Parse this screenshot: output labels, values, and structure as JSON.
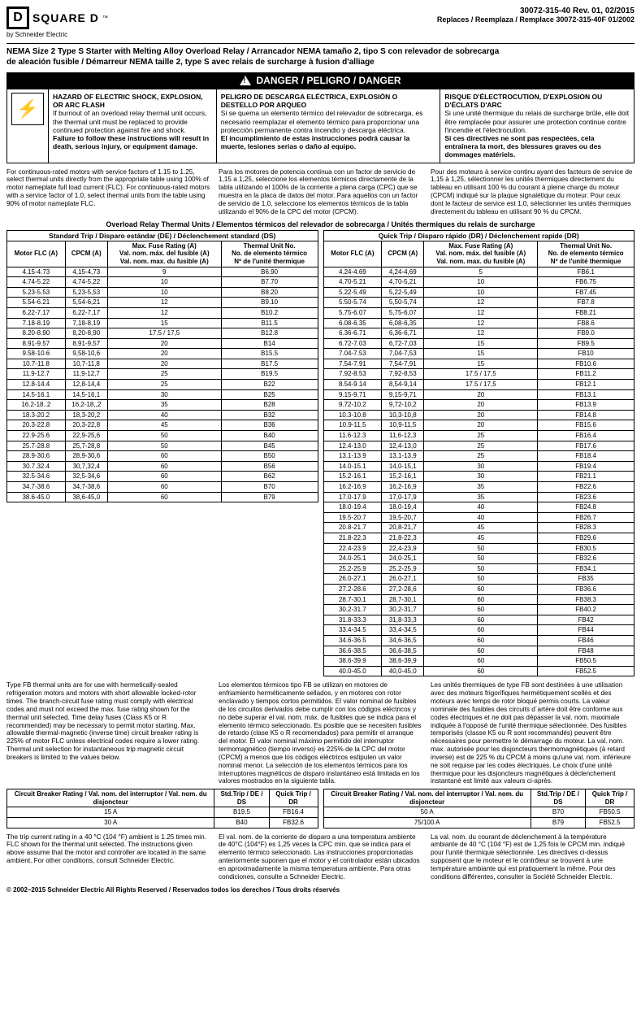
{
  "header": {
    "brand": "SQUARE D",
    "by": "by Schneider Electric",
    "docnum": "30072-315-40 Rev. 01, 02/2015",
    "replaces": "Replaces / Reemplaza / Remplace 30072-315-40F 01/2002"
  },
  "title1": "NEMA Size 2 Type S Starter with Melting Alloy Overload Relay / Arrancador NEMA tamaño 2, tipo S con relevador de sobrecarga",
  "title2": "de aleación fusible / Démarreur NEMA taille 2, type S  avec relais de surcharge à fusion d'alliage",
  "danger_label": "DANGER / PELIGRO / DANGER",
  "hazard": {
    "en_head": "HAZARD OF ELECTRIC SHOCK, EXPLOSION, OR ARC FLASH",
    "en_body": "If burnout of an overload relay thermal unit occurs, the thermal unit must be replaced to provide continued protection against fire and shock.",
    "en_bold": "Failure to follow these instructions will result in death, serious injury, or equipment damage.",
    "es_head": "PELIGRO DE DESCARGA ELÉCTRICA, EXPLOSIÓN O DESTELLO POR ARQUEO",
    "es_body": "Si se quema un elemento térmico del relevador de sobrecarga, es necesario reemplazar el elemento térmico para proporcionar una protección permanente contra incendio y descarga eléctrica.",
    "es_bold": "El incumplimiento de estas instrucciones podrá causar la muerte, lesiones serias o daño al equipo.",
    "fr_head": "RISQUE D'ÉLECTROCUTION, D'EXPLOSION OU D'ÉCLATS D'ARC",
    "fr_body": "Si une unité thermique du relais de surcharge brûle, elle doit être remplacée pour assurer une protection continue contre l'incendie et l'électrocution.",
    "fr_bold": "Si ces directives ne sont pas respectées, cela entraînera la mort, des blessures graves ou des dommages matériels."
  },
  "intro": {
    "en": "For continuous-rated motors with service factors of 1.15 to 1.25, select thermal units directly from the appropriate table using 100% of motor nameplate full load current (FLC). For continuous-rated motors with a service factor of 1.0, select thermal units from the table using 90% of motor nameplate FLC.",
    "es": "Para los motores de potencia continua con un factor de servicio de 1,15 a 1,25, seleccione los elementos térmicos directamente de la tabla utilizando el 100% de la corriente a plena carga (CPC) que se muestra en la placa de datos del motor. Para aquellos con un factor de servicio de 1,0, seleccione los elementos térmicos de la tabla utilizando el 90% de la CPC del motor (CPCM).",
    "fr": "Pour des moteurs à service continu ayant des facteurs de service de 1,15 à 1,25, sélectionner les unités thermiques directement du tableau en utilisant 100 % du courant à pleine charge du moteur (CPCM) indiqué sur la plaque signalétique du moteur. Pour ceux dont le facteur de service est 1,0, sélectionner les unités thermiques directement du tableau en utilisant 90 % du CPCM."
  },
  "overload_head": "Overload Relay Thermal Units / Elementos térmicos del relevador de sobrecarga / Unités thermiques du relais de surcharge",
  "std_caption": "Standard Trip / Disparo estándar (DE) / Déclenchement standard (DS)",
  "quick_caption": "Quick Trip / Disparo rápido (DR) / Déclenchement rapide (DR)",
  "col_heads": {
    "flc": "Motor FLC (A)",
    "cpcm": "CPCM (A)",
    "fuse": "Max. Fuse Rating (A)\nVal. nom. máx. del fusible (A)\nVal. nom. max. du fusible (A)",
    "unit": "Thermal Unit No.\nNo. de elemento térmico\nNº de l'unité thermique"
  },
  "std_rows": [
    [
      "4.15-4.73",
      "4,15-4,73",
      "9",
      "B6.90"
    ],
    [
      "4.74-5.22",
      "4,74-5,22",
      "10",
      "B7.70"
    ],
    [
      "5.23-5.53",
      "5,23-5,53",
      "10",
      "B8.20"
    ],
    [
      "5.54-6.21",
      "5,54-6,21",
      "12",
      "B9.10"
    ],
    [
      "6.22-7.17",
      "6,22-7,17",
      "12",
      "B10.2"
    ],
    [
      "7.18-8.19",
      "7,18-8,19",
      "15",
      "B11.5"
    ],
    [
      "8.20-8.90",
      "8,20-8,90",
      "17.5 / 17,5",
      "B12.8"
    ],
    [
      "8.91-9.57",
      "8,91-9,57",
      "20",
      "B14"
    ],
    [
      "9.58-10.6",
      "9,58-10,6",
      "20",
      "B15.5"
    ],
    [
      "10.7-11.8",
      "10,7-11,8",
      "20",
      "B17.5"
    ],
    [
      "11.9-12.7",
      "11,9-12,7",
      "25",
      "B19.5"
    ],
    [
      "12.8-14.4",
      "12,8-14,4",
      "25",
      "B22"
    ],
    [
      "14.5-16.1",
      "14,5-16,1",
      "30",
      "B25"
    ],
    [
      "16.2-18..2",
      "16,2-18,,2",
      "35",
      "B28"
    ],
    [
      "18.3-20.2",
      "18,3-20,2",
      "40",
      "B32"
    ],
    [
      "20.3-22.8",
      "20,3-22,8",
      "45",
      "B36"
    ],
    [
      "22.9-25.6",
      "22,9-25,6",
      "50",
      "B40"
    ],
    [
      "25.7-28.8",
      "25,7-28,8",
      "50",
      "B45"
    ],
    [
      "28.9-30.6",
      "28,9-30,6",
      "60",
      "B50"
    ],
    [
      "30.7.32.4",
      "30,7,32,4",
      "60",
      "B56"
    ],
    [
      "32.5-34.6",
      "32,5-34,6",
      "60",
      "B62"
    ],
    [
      "34.7-38.6",
      "34,7-38,6",
      "60",
      "B70"
    ],
    [
      "38.6-45.0",
      "38,6-45,0",
      "60",
      "B79"
    ]
  ],
  "quick_rows": [
    [
      "4.24-4.69",
      "4,24-4,69",
      "5",
      "FB6.1"
    ],
    [
      "4.70-5.21",
      "4,70-5,21",
      "10",
      "FB6.75"
    ],
    [
      "5.22-5.49",
      "5,22-5,49",
      "10",
      "FB7.45"
    ],
    [
      "5.50-5.74",
      "5,50-5,74",
      "12",
      "FB7.8"
    ],
    [
      "5.75-6.07",
      "5,75-6,07",
      "12",
      "FB8.21"
    ],
    [
      "6.08-6.35",
      "6,08-6,35",
      "12",
      "FB8.6"
    ],
    [
      "6.36-6.71",
      "6,36-6,71",
      "12",
      "FB9.0"
    ],
    [
      "6.72-7.03",
      "6,72-7,03",
      "15",
      "FB9.5"
    ],
    [
      "7.04-7.53",
      "7,04-7,53",
      "15",
      "FB10"
    ],
    [
      "7.54-7.91",
      "7,54-7,91",
      "15",
      "FB10.6"
    ],
    [
      "7.92-8.53",
      "7,92-8,53",
      "17.5 / 17,5",
      "FB11.2"
    ],
    [
      "8.54-9.14",
      "8,54-9,14",
      "17.5 / 17,5",
      "FB12.1"
    ],
    [
      "9.15-9.71",
      "9,15-9,71",
      "20",
      "FB13.1"
    ],
    [
      "9.72-10.2",
      "9,72-10,2",
      "20",
      "FB13.9"
    ],
    [
      "10.3-10.8",
      "10,3-10,8",
      "20",
      "FB14.8"
    ],
    [
      "10.9-11.5",
      "10,9-11,5",
      "20",
      "FB15.6"
    ],
    [
      "11.6-12.3",
      "11,6-12,3",
      "25",
      "FB16.4"
    ],
    [
      "12.4-13.0",
      "12,4-13,0",
      "25",
      "FB17.6"
    ],
    [
      "13.1-13.9",
      "13,1-13,9",
      "25",
      "FB18.4"
    ],
    [
      "14.0-15.1",
      "14,0-15,1",
      "30",
      "FB19.4"
    ],
    [
      "15.2-16.1",
      "15,2-16,1",
      "30",
      "FB21.1"
    ],
    [
      "16.2-16.9",
      "16,2-16,9",
      "35",
      "FB22.6"
    ],
    [
      "17.0-17.9",
      "17,0-17,9",
      "35",
      "FB23.6"
    ],
    [
      "18.0-19.4",
      "18,0-19,4",
      "40",
      "FB24.8"
    ],
    [
      "19.5-20.7",
      "19,5-20,7",
      "40",
      "FB26.7"
    ],
    [
      "20.8-21.7",
      "20,8-21,7",
      "45",
      "FB28.3"
    ],
    [
      "21.8-22.3",
      "21,8-22,3",
      "45",
      "FB29.6"
    ],
    [
      "22.4-23.9",
      "22,4-23,9",
      "50",
      "FB30.5"
    ],
    [
      "24.0-25.1",
      "24,0-25,1",
      "50",
      "FB32.6"
    ],
    [
      "25.2-25.9",
      "25,2-25,9",
      "50",
      "FB34.1"
    ],
    [
      "26.0-27.1",
      "26,0-27,1",
      "50",
      "FB35"
    ],
    [
      "27.2-28.6",
      "27,2-28,6",
      "60",
      "FB36.6"
    ],
    [
      "28.7-30.1",
      "28,7-30,1",
      "60",
      "FB38.3"
    ],
    [
      "30.2-31.7",
      "30,2-31,7",
      "60",
      "FB40.2"
    ],
    [
      "31.8-33.3",
      "31,8-33,3",
      "60",
      "FB42"
    ],
    [
      "33.4-34.5",
      "33,4-34,5",
      "60",
      "FB44"
    ],
    [
      "34.6-36.5",
      "34,6-36,5",
      "60",
      "FB46"
    ],
    [
      "36.6-38.5",
      "36,6-38,5",
      "60",
      "FB48"
    ],
    [
      "38.6-39.9",
      "38,6-39,9",
      "60",
      "FB50.5"
    ],
    [
      "40.0-45.0",
      "40,0-45,0",
      "60",
      "FB52.5"
    ]
  ],
  "fb_text": {
    "en": "Type FB thermal units are for use with hermetically-sealed refrigeration motors and motors with short allowable locked-rotor times. The branch-circuit fuse rating must comply with electrical codes and must not exceed the max. fuse rating shown for the thermal unit selected. Time delay fuses (Class K5 or R recommended) may be necessary to permit motor starting. Max. allowable thermal-magnetic (inverse time) circuit breaker rating is 225% of motor FLC unless electrical codes require a lower rating. Thermal unit selection for instantaneous trip magnetic circuit breakers is limited to the values below.",
    "es": "Los elementos térmicos tipo FB se utilizan en motores de enfriamiento herméticamente sellados, y en motores con rotor enclavado y tiempos cortos permitidos. El valor nominal de fusibles de los circuitos derivados debe cumplir con los códigos eléctricos y no debe superar el val. nom. máx. de fusibles que se indica para el elemento térmico seleccionado. Es posible que se necesiten fusibles de retardo (clase K5 o R recomendados) para permitir el arranque del motor. El valor nominal máximo permitido del interruptor termomagnético (tiempo inverso) es 225% de la CPC del motor (CPCM) a menos que los códigos eléctricos estipulen un valor nominal menor. La selección de los elementos térmicos para los interruptores magnéticos de disparo instantáneo está limitada en los valores mostrados en la siguiente tabla.",
    "fr": "Les unités thermiques de type FB sont destinées à une utilisation avec des moteurs frigorifiques hermétiquement scellés et des moteurs avec temps de rotor bloqué permis courts. La valeur nominale des fusibles des circuits d´artère doit être conforme aux codes électriques et ne doit pas dépasser la val. nom. maximale indiquée à l'opposé de l'unité thermique sélectionnée. Des fusibles temporisés (classe K5 ou R sont recommandés) peuvent être nécessaires pour permettre le démarrage du moteur. La val. nom. max. autorisée pour les disjoncteurs thermomagnétiques (à retard inverse) est de 225 % du CPCM à moins qu'une val. nom. inférieure ne soit requise par les codes électriques. Le choix d'une unité thermique pour les disjoncteurs magnétiques à déclenchement instantané est limité aux valeurs ci-après."
  },
  "cb_heads": {
    "rating": "Circuit Breaker Rating / Val. nom. del interruptor  / Val. nom. du disjoncteur",
    "std": "Std.Trip / DE / DS",
    "quick": "Quick Trip / DR"
  },
  "cb_left": [
    [
      "15 A",
      "B19.5",
      "FB16.4"
    ],
    [
      "30 A",
      "B40",
      "FB32.6"
    ]
  ],
  "cb_right": [
    [
      "50 A",
      "B70",
      "FB50.5"
    ],
    [
      "75/100 A",
      "B79",
      "FB52.5"
    ]
  ],
  "trip_text": {
    "en": "The trip current rating in a 40 °C (104 °F) ambient is 1.25 times min. FLC shown for the thermal unit selected. The instructions given above assume that the motor and controller are located in the same ambient. For other conditions, consult Schneider Electric.",
    "es": "El val. nom. de la corriente de disparo a una temperatura ambiente de 40°C (104°F) es 1,25 veces la CPC mín. que se indica para el elemento térmico seleccionado. Las instrucciones proporcionadas anteriormente suponen que el motor y el controlador están ubicados en aproximadamente la misma temperatura ambiente. Para otras condiciones, consulte a Schneider Electric.",
    "fr": "La val. nom. du courant de déclenchement à la température ambiante de 40 °C (104 °F) est de 1,25 fois le CPCM min. indiqué pour l'unité thermique sélectionnée. Les directives ci-dessus supposent que le moteur et le contrôleur se trouvent à une température ambiante qui est pratiquement la même. Pour des conditions différentes, consulter la Société Schneider Electric."
  },
  "copyright": "© 2002–2015 Schneider Electric  All Rights Reserved / Reservados todos los derechos / Tous droits réservés"
}
